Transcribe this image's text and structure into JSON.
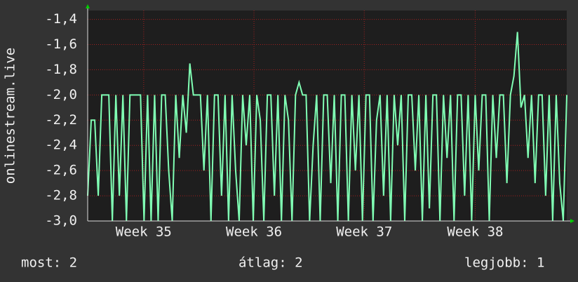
{
  "chart_data": {
    "type": "line",
    "y_label": "onlinestream.live",
    "color": "#80ffb4",
    "grid": true,
    "xlim": [
      0,
      136
    ],
    "xticks": [
      {
        "value": 15.9,
        "label": "Week 35"
      },
      {
        "value": 47.2,
        "label": "Week 36"
      },
      {
        "value": 78.5,
        "label": "Week 37"
      },
      {
        "value": 110,
        "label": "Week 38"
      }
    ],
    "ylim": [
      -3.0,
      -1.33
    ],
    "yticks": [
      {
        "value": -3.0,
        "label": "-3,0"
      },
      {
        "value": -2.8,
        "label": "-2,8"
      },
      {
        "value": -2.6,
        "label": "-2,6"
      },
      {
        "value": -2.4,
        "label": "-2,4"
      },
      {
        "value": -2.2,
        "label": "-2,2"
      },
      {
        "value": -2.0,
        "label": "-2,0"
      },
      {
        "value": -1.8,
        "label": "-1,8"
      },
      {
        "value": -1.6,
        "label": "-1,6"
      },
      {
        "value": -1.4,
        "label": "-1,4"
      }
    ],
    "values": [
      -2.8,
      -2.2,
      -2.2,
      -2.8,
      -2.0,
      -2.0,
      -2.0,
      -3.0,
      -2.0,
      -2.8,
      -2.0,
      -3.0,
      -2.0,
      -2.0,
      -2.0,
      -2.0,
      -3.0,
      -2.0,
      -3.0,
      -2.0,
      -3.0,
      -2.0,
      -2.0,
      -2.6,
      -3.0,
      -2.0,
      -2.5,
      -2.0,
      -2.3,
      -1.75,
      -2.0,
      -2.0,
      -2.0,
      -2.6,
      -2.0,
      -3.0,
      -2.0,
      -2.0,
      -2.8,
      -2.0,
      -3.0,
      -2.0,
      -2.6,
      -3.0,
      -2.0,
      -2.4,
      -2.0,
      -3.0,
      -2.0,
      -2.2,
      -3.0,
      -2.0,
      -2.0,
      -2.8,
      -2.0,
      -3.0,
      -2.0,
      -2.2,
      -3.0,
      -2.0,
      -1.9,
      -2.0,
      -2.0,
      -3.0,
      -2.4,
      -2.0,
      -3.0,
      -2.0,
      -2.0,
      -2.7,
      -2.0,
      -3.0,
      -2.0,
      -2.0,
      -3.0,
      -2.0,
      -2.6,
      -2.0,
      -3.0,
      -2.0,
      -2.0,
      -3.0,
      -2.2,
      -2.0,
      -2.8,
      -2.0,
      -3.0,
      -2.0,
      -2.4,
      -2.0,
      -3.0,
      -2.0,
      -2.0,
      -2.6,
      -2.0,
      -3.0,
      -2.0,
      -2.9,
      -2.0,
      -2.0,
      -3.0,
      -2.0,
      -2.5,
      -2.0,
      -3.0,
      -2.0,
      -2.0,
      -2.8,
      -2.0,
      -3.0,
      -2.0,
      -2.6,
      -2.0,
      -2.0,
      -3.0,
      -2.0,
      -2.5,
      -2.0,
      -2.0,
      -2.7,
      -2.0,
      -1.85,
      -1.5,
      -2.1,
      -2.0,
      -2.5,
      -2.0,
      -2.7,
      -2.0,
      -2.0,
      -2.8,
      -2.0,
      -3.0,
      -2.0,
      -2.7,
      -3.0,
      -2.0
    ],
    "legend_items": [
      "most: 2",
      "átlag: 2",
      "legjobb: 1"
    ]
  }
}
